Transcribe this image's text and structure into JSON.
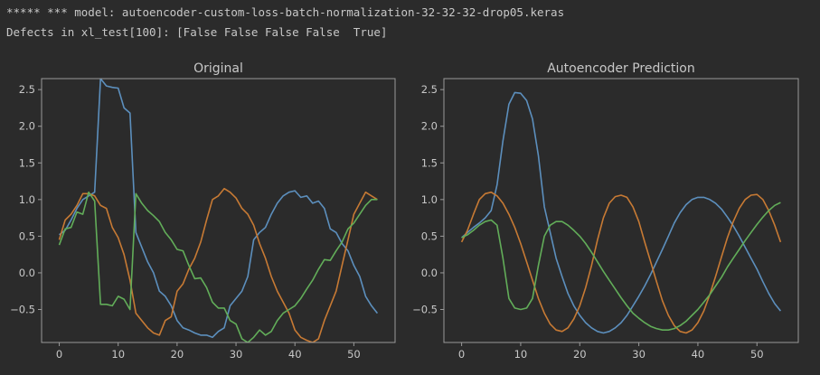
{
  "console": {
    "lines": [
      "***** *** model: autoencoder-custom-loss-batch-normalization-32-32-32-drop05.keras",
      "Defects in xl_test[100]: [False False False False  True]"
    ]
  },
  "colors": {
    "background": "#2b2b2b",
    "axis": "#9a9a9a",
    "text": "#c8c8c8",
    "series": [
      "#5c8fbd",
      "#c77a34",
      "#62ad59"
    ]
  },
  "chart_data": [
    {
      "type": "line",
      "title": "Original",
      "xlim": [
        -3,
        57
      ],
      "ylim": [
        -0.95,
        2.65
      ],
      "xticks": [
        0,
        10,
        20,
        30,
        40,
        50
      ],
      "yticks": [
        -0.5,
        0.0,
        0.5,
        1.0,
        1.5,
        2.0,
        2.5
      ],
      "ytick_labels": [
        "−0.5",
        "0.0",
        "0.5",
        "1.0",
        "1.5",
        "2.0",
        "2.5"
      ],
      "x": [
        0,
        1,
        2,
        3,
        4,
        5,
        6,
        7,
        8,
        9,
        10,
        11,
        12,
        13,
        14,
        15,
        16,
        17,
        18,
        19,
        20,
        21,
        22,
        23,
        24,
        25,
        26,
        27,
        28,
        29,
        30,
        31,
        32,
        33,
        34,
        35,
        36,
        37,
        38,
        39,
        40,
        41,
        42,
        43,
        44,
        45,
        46,
        47,
        48,
        49,
        50,
        51,
        52,
        53,
        54
      ],
      "series": [
        {
          "color_index": 0,
          "values": [
            0.52,
            0.58,
            0.72,
            0.88,
            1.0,
            1.05,
            1.1,
            2.65,
            2.55,
            2.53,
            2.52,
            2.25,
            2.18,
            0.55,
            0.35,
            0.15,
            0.0,
            -0.25,
            -0.32,
            -0.45,
            -0.65,
            -0.75,
            -0.78,
            -0.82,
            -0.85,
            -0.85,
            -0.88,
            -0.8,
            -0.75,
            -0.45,
            -0.35,
            -0.25,
            -0.05,
            0.45,
            0.55,
            0.62,
            0.8,
            0.95,
            1.05,
            1.1,
            1.12,
            1.03,
            1.05,
            0.95,
            0.98,
            0.88,
            0.6,
            0.55,
            0.4,
            0.3,
            0.1,
            -0.05,
            -0.32,
            -0.45,
            -0.55
          ]
        },
        {
          "color_index": 1,
          "values": [
            0.45,
            0.72,
            0.8,
            0.92,
            1.08,
            1.08,
            1.05,
            0.92,
            0.88,
            0.62,
            0.48,
            0.25,
            -0.1,
            -0.55,
            -0.65,
            -0.75,
            -0.82,
            -0.85,
            -0.65,
            -0.6,
            -0.25,
            -0.15,
            0.05,
            0.2,
            0.42,
            0.72,
            1.0,
            1.05,
            1.15,
            1.1,
            1.02,
            0.88,
            0.8,
            0.65,
            0.4,
            0.2,
            -0.05,
            -0.25,
            -0.4,
            -0.55,
            -0.78,
            -0.88,
            -0.92,
            -0.95,
            -0.9,
            -0.65,
            -0.45,
            -0.25,
            0.1,
            0.45,
            0.8,
            0.95,
            1.1,
            1.05,
            1.0
          ]
        },
        {
          "color_index": 2,
          "values": [
            0.38,
            0.6,
            0.62,
            0.83,
            0.8,
            1.1,
            0.98,
            -0.43,
            -0.43,
            -0.45,
            -0.32,
            -0.36,
            -0.5,
            1.08,
            0.95,
            0.85,
            0.78,
            0.7,
            0.55,
            0.45,
            0.32,
            0.3,
            0.1,
            -0.08,
            -0.07,
            -0.2,
            -0.4,
            -0.48,
            -0.48,
            -0.65,
            -0.7,
            -0.9,
            -0.95,
            -0.88,
            -0.78,
            -0.85,
            -0.8,
            -0.65,
            -0.55,
            -0.5,
            -0.45,
            -0.35,
            -0.22,
            -0.1,
            0.05,
            0.18,
            0.17,
            0.3,
            0.42,
            0.6,
            0.68,
            0.8,
            0.92,
            1.0,
            1.0
          ]
        }
      ]
    },
    {
      "type": "line",
      "title": "Autoencoder Prediction",
      "xlim": [
        -3,
        57
      ],
      "ylim": [
        -0.95,
        2.65
      ],
      "xticks": [
        0,
        10,
        20,
        30,
        40,
        50
      ],
      "yticks": [
        -0.5,
        0.0,
        0.5,
        1.0,
        1.5,
        2.0,
        2.5
      ],
      "ytick_labels": [
        "−0.5",
        "0.0",
        "0.5",
        "1.0",
        "1.5",
        "2.0",
        "2.5"
      ],
      "x": [
        0,
        1,
        2,
        3,
        4,
        5,
        6,
        7,
        8,
        9,
        10,
        11,
        12,
        13,
        14,
        15,
        16,
        17,
        18,
        19,
        20,
        21,
        22,
        23,
        24,
        25,
        26,
        27,
        28,
        29,
        30,
        31,
        32,
        33,
        34,
        35,
        36,
        37,
        38,
        39,
        40,
        41,
        42,
        43,
        44,
        45,
        46,
        47,
        48,
        49,
        50,
        51,
        52,
        53,
        54
      ],
      "series": [
        {
          "color_index": 0,
          "values": [
            0.48,
            0.55,
            0.62,
            0.68,
            0.75,
            0.85,
            1.2,
            1.8,
            2.3,
            2.46,
            2.45,
            2.35,
            2.1,
            1.6,
            0.9,
            0.55,
            0.2,
            -0.05,
            -0.28,
            -0.45,
            -0.58,
            -0.68,
            -0.75,
            -0.8,
            -0.82,
            -0.8,
            -0.75,
            -0.68,
            -0.58,
            -0.45,
            -0.32,
            -0.18,
            -0.02,
            0.15,
            0.32,
            0.5,
            0.68,
            0.82,
            0.93,
            1.0,
            1.03,
            1.03,
            1.0,
            0.95,
            0.87,
            0.76,
            0.64,
            0.5,
            0.35,
            0.2,
            0.05,
            -0.12,
            -0.28,
            -0.42,
            -0.52
          ]
        },
        {
          "color_index": 1,
          "values": [
            0.42,
            0.58,
            0.8,
            1.0,
            1.08,
            1.1,
            1.05,
            0.95,
            0.8,
            0.62,
            0.4,
            0.15,
            -0.1,
            -0.35,
            -0.55,
            -0.7,
            -0.78,
            -0.8,
            -0.75,
            -0.63,
            -0.45,
            -0.2,
            0.1,
            0.45,
            0.75,
            0.95,
            1.04,
            1.06,
            1.03,
            0.9,
            0.7,
            0.42,
            0.15,
            -0.12,
            -0.38,
            -0.58,
            -0.72,
            -0.8,
            -0.82,
            -0.78,
            -0.68,
            -0.52,
            -0.3,
            -0.05,
            0.22,
            0.48,
            0.7,
            0.88,
            1.0,
            1.06,
            1.07,
            1.0,
            0.85,
            0.65,
            0.42
          ]
        },
        {
          "color_index": 2,
          "values": [
            0.48,
            0.52,
            0.58,
            0.65,
            0.7,
            0.72,
            0.65,
            0.2,
            -0.35,
            -0.48,
            -0.5,
            -0.48,
            -0.35,
            0.1,
            0.5,
            0.65,
            0.7,
            0.7,
            0.65,
            0.58,
            0.5,
            0.4,
            0.28,
            0.15,
            0.02,
            -0.1,
            -0.22,
            -0.34,
            -0.45,
            -0.55,
            -0.62,
            -0.68,
            -0.73,
            -0.76,
            -0.78,
            -0.78,
            -0.76,
            -0.72,
            -0.66,
            -0.58,
            -0.5,
            -0.4,
            -0.3,
            -0.18,
            -0.06,
            0.08,
            0.2,
            0.32,
            0.44,
            0.55,
            0.66,
            0.76,
            0.85,
            0.92,
            0.96
          ]
        }
      ]
    }
  ]
}
